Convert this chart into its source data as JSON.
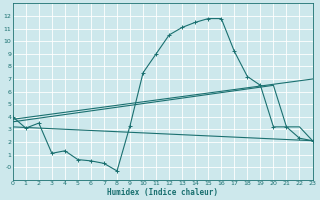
{
  "xlabel": "Humidex (Indice chaleur)",
  "bg_color": "#cde8ec",
  "grid_color": "#b0d0d8",
  "line_color": "#1a7070",
  "x_min": 0,
  "x_max": 23,
  "y_min": -1,
  "y_max": 13,
  "x_ticks": [
    0,
    1,
    2,
    3,
    4,
    5,
    6,
    7,
    8,
    9,
    10,
    11,
    12,
    13,
    14,
    15,
    16,
    17,
    18,
    19,
    20,
    21,
    22,
    23
  ],
  "y_ticks": [
    0,
    1,
    2,
    3,
    4,
    5,
    6,
    7,
    8,
    9,
    10,
    11,
    12
  ],
  "y_tick_labels": [
    "-0",
    "1",
    "2",
    "3",
    "4",
    "5",
    "6",
    "7",
    "8",
    "9",
    "10",
    "11",
    "12"
  ],
  "curve1_x": [
    0,
    1,
    2,
    3,
    4,
    5,
    6,
    7,
    8,
    9,
    10,
    11,
    12,
    13,
    14,
    15,
    16,
    17,
    18,
    19,
    20,
    21,
    22,
    23
  ],
  "curve1_y": [
    4.0,
    3.1,
    3.5,
    1.1,
    1.3,
    0.6,
    0.5,
    0.3,
    -0.3,
    3.3,
    7.5,
    9.0,
    10.5,
    11.1,
    11.5,
    11.8,
    11.8,
    9.2,
    7.2,
    6.5,
    3.2,
    3.2,
    2.3,
    2.1
  ],
  "curve2_x": [
    0,
    23
  ],
  "curve2_y": [
    3.8,
    7.0
  ],
  "curve3_x": [
    0,
    20,
    21,
    22,
    23
  ],
  "curve3_y": [
    3.6,
    6.5,
    3.2,
    3.2,
    2.1
  ],
  "curve4_x": [
    0,
    23
  ],
  "curve4_y": [
    3.2,
    2.1
  ]
}
